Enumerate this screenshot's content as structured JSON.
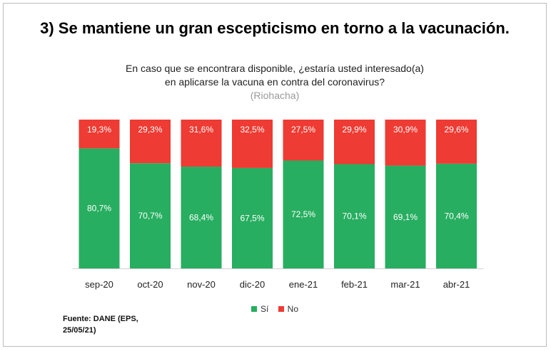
{
  "heading": "3)  Se mantiene un gran escepticismo en torno a la vacunación.",
  "question_line1": "En caso que se encontrara disponible, ¿estaría usted interesado(a)",
  "question_line2": "en aplicarse la vacuna en contra del coronavirus?",
  "location": "(Riohacha)",
  "source": "Fuente: DANE (EPS, 25/05/21)",
  "colors": {
    "si": "#27ae60",
    "no": "#ee3b33",
    "axis": "#d0d0d0"
  },
  "chart_data": {
    "type": "bar",
    "stacked": true,
    "categories": [
      "sep-20",
      "oct-20",
      "nov-20",
      "dic-20",
      "ene-21",
      "feb-21",
      "mar-21",
      "abr-21"
    ],
    "series": [
      {
        "name": "Sí",
        "values": [
          80.7,
          70.7,
          68.4,
          67.5,
          72.5,
          70.1,
          69.1,
          70.4
        ],
        "labels": [
          "80,7%",
          "70,7%",
          "68,4%",
          "67,5%",
          "72,5%",
          "70,1%",
          "69,1%",
          "70,4%"
        ]
      },
      {
        "name": "No",
        "values": [
          19.3,
          29.3,
          31.6,
          32.5,
          27.5,
          29.9,
          30.9,
          29.6
        ],
        "labels": [
          "19,3%",
          "29,3%",
          "31,6%",
          "32,5%",
          "27,5%",
          "29,9%",
          "30,9%",
          "29,6%"
        ]
      }
    ],
    "ylim": [
      0,
      100
    ],
    "grid": false,
    "legend": "bottom"
  }
}
